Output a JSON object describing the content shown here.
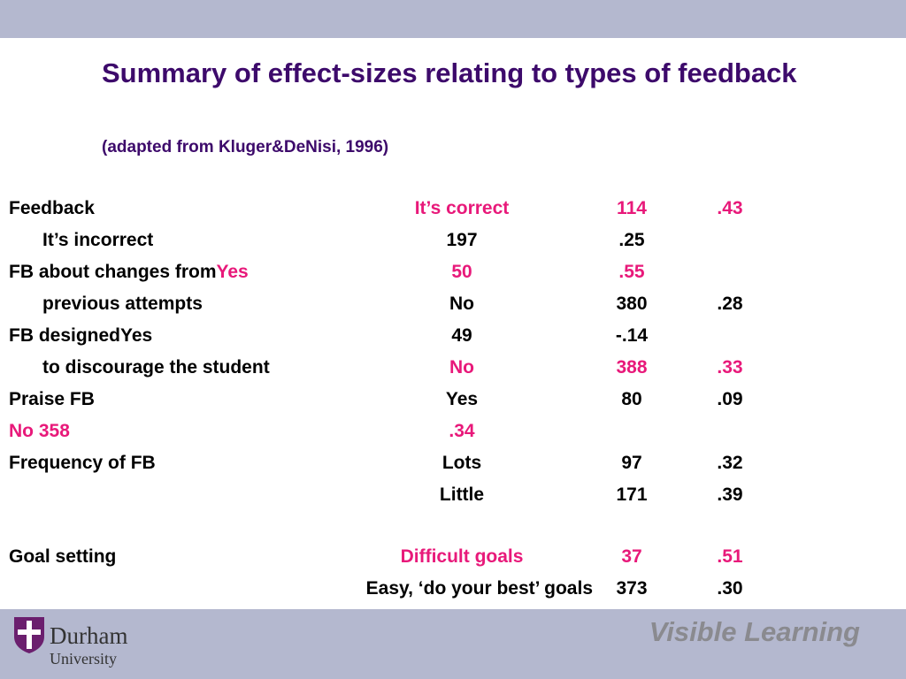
{
  "slide": {
    "title": "Summary of effect-sizes relating to types of feedback",
    "subtitle": "(adapted from Kluger&DeNisi, 1996)"
  },
  "rows": [
    {
      "label": "Feedback",
      "condition": "It’s correct",
      "n": "114",
      "es": ".43",
      "highlight": true
    },
    {
      "label": "It’s incorrect",
      "condition": "197",
      "n": ".25",
      "es": "",
      "highlight": false
    },
    {
      "label": "FB about changes from",
      "label_tail": "Yes",
      "condition": "50",
      "n": ".55",
      "es": "",
      "highlight": true
    },
    {
      "label": "previous attempts",
      "condition": "No",
      "n": "380",
      "es": ".28",
      "highlight": false
    },
    {
      "label": "FB designedYes",
      "condition": "49",
      "n": "-.14",
      "es": "",
      "highlight": false
    },
    {
      "label": "to discourage the student",
      "condition": "No",
      "n": "388",
      "es": ".33",
      "highlight": true
    },
    {
      "label": "Praise FB",
      "condition": "Yes",
      "n": "80",
      "es": ".09",
      "highlight": false
    },
    {
      "label": "No",
      "label_tail": "358",
      "condition": ".34",
      "n": "",
      "es": "",
      "highlight": true
    },
    {
      "label": "Frequency of FB",
      "condition": "Lots",
      "n": "97",
      "es": ".32",
      "highlight": false
    },
    {
      "label": "",
      "condition": "Little",
      "n": "171",
      "es": ".39",
      "highlight": false
    },
    {
      "label": "Goal setting",
      "condition": "Difficult goals",
      "n": "37",
      "es": ".51",
      "highlight": true
    },
    {
      "label": "",
      "condition": "Easy, ‘do your best’ goals",
      "n": "373",
      "es": ".30",
      "highlight": false
    }
  ],
  "footer": {
    "university_name": "Durham",
    "university_sub": "University",
    "brand": "Visible Learning"
  },
  "colors": {
    "title": "#3d0a6b",
    "highlight": "#e8197a",
    "band": "#b4b8cf",
    "brand": "#8a8a8f",
    "shield": "#6b1f6e"
  }
}
